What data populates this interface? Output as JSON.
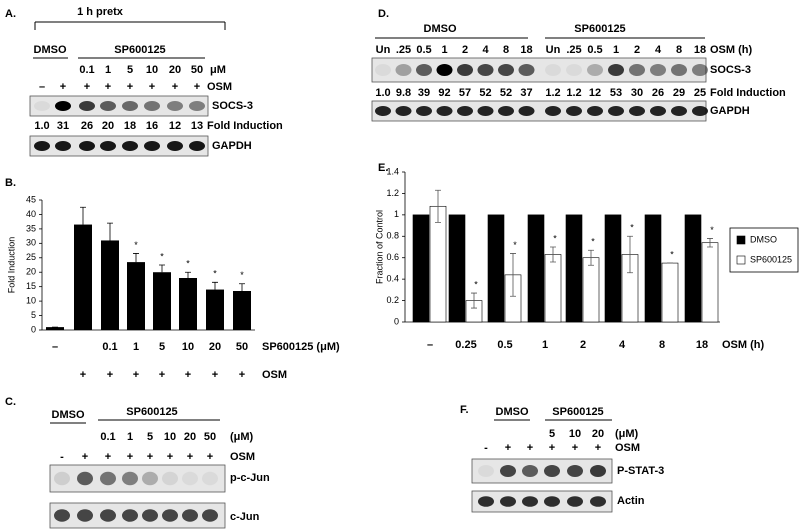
{
  "panels": {
    "A": {
      "label": "A.",
      "bracket": "1 h pretx",
      "groups": [
        "DMSO",
        "SP600125"
      ],
      "doses": [
        "0.1",
        "1",
        "5",
        "10",
        "20",
        "50"
      ],
      "dose_unit": "μM",
      "osm": [
        "–",
        "+",
        "+",
        "+",
        "+",
        "+",
        "+",
        "+"
      ],
      "osm_label": "OSM",
      "blot_labels": [
        "SOCS-3",
        "GAPDH"
      ],
      "fold": [
        "1.0",
        "31",
        "26",
        "20",
        "18",
        "16",
        "12",
        "13"
      ],
      "fold_label": "Fold Induction"
    },
    "C": {
      "label": "C.",
      "groups": [
        "DMSO",
        "SP600125"
      ],
      "doses": [
        "0.1",
        "1",
        "5",
        "10",
        "20",
        "50"
      ],
      "dose_unit": "(μM)",
      "osm": [
        "-",
        "+",
        "+",
        "+",
        "+",
        "+",
        "+",
        "+"
      ],
      "osm_label": "OSM",
      "blot_labels": [
        "p-c-Jun",
        "c-Jun"
      ]
    },
    "D": {
      "label": "D.",
      "groups": [
        "DMSO",
        "SP600125"
      ],
      "times": [
        "Un",
        ".25",
        "0.5",
        "1",
        "2",
        "4",
        "8",
        "18",
        "Un",
        ".25",
        "0.5",
        "1",
        "2",
        "4",
        "8",
        "18"
      ],
      "time_label": "OSM (h)",
      "blot_labels": [
        "SOCS-3",
        "GAPDH"
      ],
      "fold": [
        "1.0",
        "9.8",
        "39",
        "92",
        "57",
        "52",
        "52",
        "37",
        "1.2",
        "1.2",
        "12",
        "53",
        "30",
        "26",
        "29",
        "25"
      ],
      "fold_label": "Fold Induction"
    },
    "F": {
      "label": "F.",
      "groups": [
        "DMSO",
        "SP600125"
      ],
      "doses": [
        "5",
        "10",
        "20"
      ],
      "dose_unit": "(μM)",
      "osm": [
        "-",
        "+",
        "+",
        "+",
        "+",
        "+"
      ],
      "osm_label": "OSM",
      "blot_labels": [
        "P-STAT-3",
        "Actin"
      ]
    }
  },
  "chart_data": [
    {
      "type": "bar",
      "panel_label": "B.",
      "y_label": "Fold Induction",
      "categories": [
        "–",
        null,
        "0.1",
        "1",
        "5",
        "10",
        "20",
        "50"
      ],
      "category_title": "SP600125 (μM)",
      "osm_row": [
        null,
        "+",
        "+",
        "+",
        "+",
        "+",
        "+",
        "+"
      ],
      "osm_title": "OSM",
      "values": [
        1,
        36.5,
        31,
        23.5,
        20,
        18,
        14,
        13.5
      ],
      "errors": [
        0,
        6,
        6,
        3,
        2.5,
        2,
        2.5,
        2.5
      ],
      "significance": [
        null,
        null,
        null,
        "*",
        "*",
        "*",
        "*",
        "*"
      ],
      "color": "#000000",
      "ylim": [
        0,
        45
      ],
      "yticks": [
        0,
        5,
        10,
        15,
        20,
        25,
        30,
        35,
        40,
        45
      ]
    },
    {
      "type": "grouped_bar",
      "panel_label": "E.",
      "y_label": "Fraction of Control",
      "categories": [
        "–",
        "0.25",
        "0.5",
        "1",
        "2",
        "4",
        "8",
        "18"
      ],
      "x_title": "OSM (h)",
      "series": [
        {
          "name": "DMSO",
          "color": "#000000",
          "values": [
            1,
            1,
            1,
            1,
            1,
            1,
            1,
            1
          ]
        },
        {
          "name": "SP600125",
          "color": "#ffffff",
          "values": [
            1.08,
            0.2,
            0.44,
            0.63,
            0.6,
            0.63,
            0.55,
            0.74
          ],
          "errors": [
            0.15,
            0.07,
            0.2,
            0.07,
            0.07,
            0.17,
            0,
            0.04
          ]
        }
      ],
      "significance": [
        null,
        "*",
        "*",
        "*",
        "*",
        "*",
        "*",
        "*"
      ],
      "legend": "right",
      "ylim": [
        0,
        1.4
      ],
      "yticks": [
        0,
        0.2,
        0.4,
        0.6,
        0.8,
        1,
        1.2,
        1.4
      ]
    }
  ]
}
